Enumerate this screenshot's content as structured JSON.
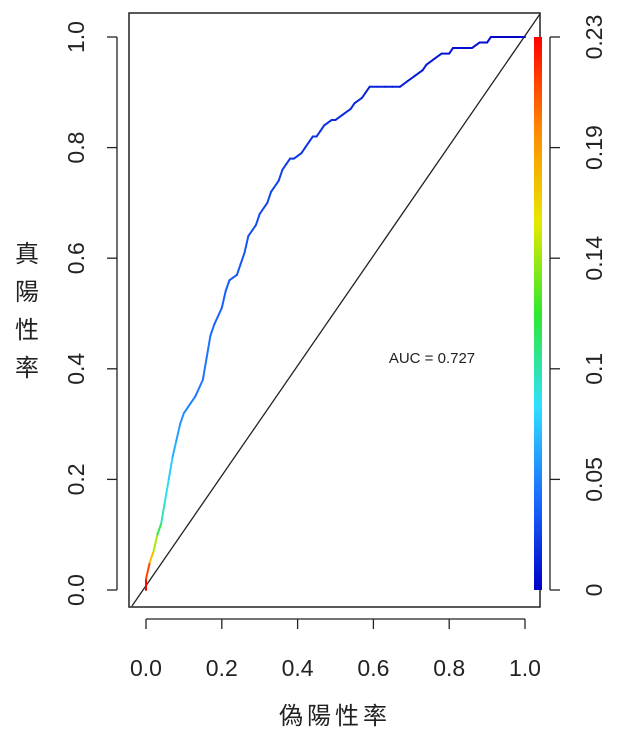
{
  "chart_data": {
    "type": "line",
    "title": "",
    "xlabel": "偽陽性率",
    "ylabel": "真陽性率",
    "xlim": [
      0.0,
      1.0
    ],
    "ylim": [
      0.0,
      1.0
    ],
    "x_ticks": [
      "0.0",
      "0.2",
      "0.4",
      "0.6",
      "0.8",
      "1.0"
    ],
    "y_ticks": [
      "0.0",
      "0.2",
      "0.4",
      "0.6",
      "0.8",
      "1.0"
    ],
    "colorbar": {
      "ticks": [
        "0",
        "0.05",
        "0.1",
        "0.14",
        "0.19",
        "0.23"
      ],
      "range": [
        0,
        0.23
      ],
      "colors": [
        "#0000c8",
        "#1a6cff",
        "#30e0ff",
        "#2ee82e",
        "#e8e800",
        "#ff8800",
        "#ff0000"
      ]
    },
    "annotation": "AUC = 0.727",
    "auc": 0.727,
    "grid": false,
    "series": [
      {
        "kind": "roc",
        "x": [
          0.0,
          0.0,
          0.01,
          0.02,
          0.03,
          0.04,
          0.05,
          0.06,
          0.07,
          0.08,
          0.09,
          0.1,
          0.11,
          0.13,
          0.15,
          0.16,
          0.17,
          0.18,
          0.2,
          0.21,
          0.22,
          0.24,
          0.25,
          0.26,
          0.27,
          0.29,
          0.3,
          0.32,
          0.33,
          0.35,
          0.36,
          0.37,
          0.38,
          0.39,
          0.41,
          0.42,
          0.44,
          0.45,
          0.46,
          0.47,
          0.49,
          0.5,
          0.52,
          0.54,
          0.55,
          0.57,
          0.58,
          0.59,
          0.61,
          0.63,
          0.65,
          0.67,
          0.69,
          0.71,
          0.73,
          0.74,
          0.76,
          0.78,
          0.8,
          0.81,
          0.82,
          0.84,
          0.86,
          0.88,
          0.9,
          0.91,
          0.92,
          0.94,
          0.96,
          0.98,
          1.0
        ],
        "y": [
          0.0,
          0.02,
          0.05,
          0.07,
          0.1,
          0.12,
          0.16,
          0.2,
          0.24,
          0.27,
          0.3,
          0.32,
          0.33,
          0.35,
          0.38,
          0.42,
          0.46,
          0.48,
          0.51,
          0.54,
          0.56,
          0.57,
          0.59,
          0.61,
          0.64,
          0.66,
          0.68,
          0.7,
          0.72,
          0.74,
          0.76,
          0.77,
          0.78,
          0.78,
          0.79,
          0.8,
          0.82,
          0.82,
          0.83,
          0.84,
          0.85,
          0.85,
          0.86,
          0.87,
          0.88,
          0.89,
          0.9,
          0.91,
          0.91,
          0.91,
          0.91,
          0.91,
          0.92,
          0.93,
          0.94,
          0.95,
          0.96,
          0.97,
          0.97,
          0.98,
          0.98,
          0.98,
          0.98,
          0.99,
          0.99,
          1.0,
          1.0,
          1.0,
          1.0,
          1.0,
          1.0
        ],
        "threshold": [
          0.23,
          0.21,
          0.17,
          0.14,
          0.11,
          0.09,
          0.08,
          0.07,
          0.06,
          0.055,
          0.05,
          0.048,
          0.045,
          0.043,
          0.041,
          0.04,
          0.038,
          0.036,
          0.034,
          0.033,
          0.032,
          0.031,
          0.03,
          0.029,
          0.028,
          0.027,
          0.026,
          0.025,
          0.024,
          0.023,
          0.022,
          0.021,
          0.02,
          0.019,
          0.019,
          0.018,
          0.018,
          0.017,
          0.017,
          0.016,
          0.016,
          0.015,
          0.015,
          0.014,
          0.014,
          0.013,
          0.013,
          0.012,
          0.012,
          0.011,
          0.011,
          0.01,
          0.01,
          0.009,
          0.009,
          0.008,
          0.008,
          0.007,
          0.007,
          0.006,
          0.006,
          0.005,
          0.005,
          0.004,
          0.004,
          0.003,
          0.003,
          0.002,
          0.002,
          0.001,
          0.0
        ]
      },
      {
        "kind": "diagonal",
        "x": [
          0.0,
          1.0
        ],
        "y": [
          0.0,
          1.0
        ],
        "color": "#222222"
      }
    ]
  }
}
